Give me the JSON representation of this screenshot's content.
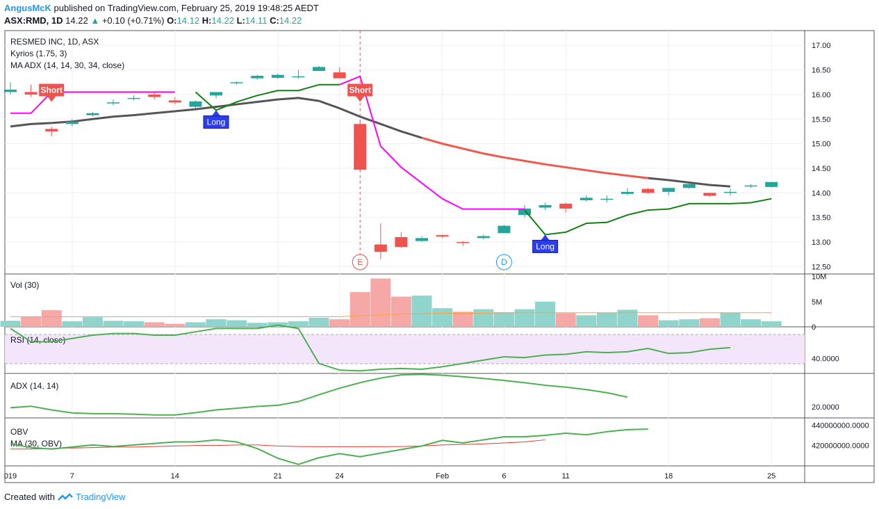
{
  "header": {
    "author": "AngusMcK",
    "published": "published on TradingView.com, February 25, 2019 19:48:25 AEDT",
    "symbol": "ASX:RMD, 1D",
    "last": "14.22",
    "change": "+0.10 (+0.71%)",
    "o_label": "O:",
    "o_value": "14.12",
    "h_label": "H:",
    "h_value": "14.22",
    "l_label": "L:",
    "l_value": "14.11",
    "c_label": "C:",
    "c_value": "14.22"
  },
  "legend": {
    "title": "RESMED INC, 1D, ASX",
    "ind1": "Kyrios (1.75, 3)",
    "ind2": "MA ADX (14, 14, 30, 34, close)"
  },
  "footer": {
    "created": "Created with",
    "brand": "TradingView"
  },
  "colors": {
    "up": "#26a69a",
    "down": "#ef5350",
    "magenta": "#ff00ff",
    "green_line": "#118011",
    "gray_ma": "#555555",
    "red_ma": "#f0584e",
    "rsi": "#4caf50",
    "adx": "#4caf50",
    "obv": "#4caf50",
    "obv_ma": "#e53935",
    "rsi_band": "#f3e6fb",
    "blue": "#2196f3"
  },
  "chart_data": [
    {
      "type": "candlestick",
      "title": "RESMED INC, 1D, ASX",
      "x_ticks": [
        "019",
        "7",
        "14",
        "21",
        "24",
        "Feb",
        "6",
        "11",
        "18",
        "25"
      ],
      "y_ticks": [
        "17.00",
        "16.50",
        "16.00",
        "15.50",
        "15.00",
        "14.50",
        "14.00",
        "13.50",
        "13.00",
        "12.50"
      ],
      "ylim": [
        12.35,
        17.3
      ],
      "candles": [
        {
          "o": 16.05,
          "h": 16.25,
          "l": 16.0,
          "c": 16.1
        },
        {
          "o": 16.05,
          "h": 16.2,
          "l": 15.95,
          "c": 16.0
        },
        {
          "o": 15.3,
          "h": 15.35,
          "l": 15.15,
          "c": 15.25
        },
        {
          "o": 15.4,
          "h": 15.5,
          "l": 15.35,
          "c": 15.45
        },
        {
          "o": 15.58,
          "h": 15.65,
          "l": 15.55,
          "c": 15.62
        },
        {
          "o": 15.82,
          "h": 15.9,
          "l": 15.78,
          "c": 15.84
        },
        {
          "o": 15.93,
          "h": 15.98,
          "l": 15.88,
          "c": 15.93
        },
        {
          "o": 16.0,
          "h": 16.05,
          "l": 15.9,
          "c": 15.95
        },
        {
          "o": 15.88,
          "h": 15.95,
          "l": 15.8,
          "c": 15.84
        },
        {
          "o": 15.75,
          "h": 15.88,
          "l": 15.72,
          "c": 15.86
        },
        {
          "o": 15.98,
          "h": 16.05,
          "l": 15.92,
          "c": 16.05
        },
        {
          "o": 16.25,
          "h": 16.27,
          "l": 16.2,
          "c": 16.25
        },
        {
          "o": 16.33,
          "h": 16.4,
          "l": 16.3,
          "c": 16.38
        },
        {
          "o": 16.34,
          "h": 16.42,
          "l": 16.32,
          "c": 16.4
        },
        {
          "o": 16.35,
          "h": 16.5,
          "l": 16.32,
          "c": 16.37
        },
        {
          "o": 16.48,
          "h": 16.58,
          "l": 16.48,
          "c": 16.56
        },
        {
          "o": 16.45,
          "h": 16.55,
          "l": 16.35,
          "c": 16.33
        },
        {
          "o": 15.4,
          "h": 15.45,
          "l": 14.45,
          "c": 14.47
        },
        {
          "o": 12.95,
          "h": 13.38,
          "l": 12.65,
          "c": 12.8
        },
        {
          "o": 13.1,
          "h": 13.2,
          "l": 12.88,
          "c": 12.9
        },
        {
          "o": 13.02,
          "h": 13.12,
          "l": 13.0,
          "c": 13.08
        },
        {
          "o": 13.14,
          "h": 13.15,
          "l": 13.08,
          "c": 13.11
        },
        {
          "o": 13.0,
          "h": 13.02,
          "l": 12.92,
          "c": 12.98
        },
        {
          "o": 13.08,
          "h": 13.15,
          "l": 13.05,
          "c": 13.12
        },
        {
          "o": 13.18,
          "h": 13.35,
          "l": 13.18,
          "c": 13.33
        },
        {
          "o": 13.55,
          "h": 13.75,
          "l": 13.5,
          "c": 13.68
        },
        {
          "o": 13.7,
          "h": 13.8,
          "l": 13.65,
          "c": 13.75
        },
        {
          "o": 13.78,
          "h": 13.8,
          "l": 13.6,
          "c": 13.68
        },
        {
          "o": 13.85,
          "h": 13.95,
          "l": 13.82,
          "c": 13.9
        },
        {
          "o": 13.88,
          "h": 13.95,
          "l": 13.8,
          "c": 13.88
        },
        {
          "o": 13.98,
          "h": 14.1,
          "l": 13.95,
          "c": 14.02
        },
        {
          "o": 14.08,
          "h": 14.1,
          "l": 13.98,
          "c": 14.0
        },
        {
          "o": 14.02,
          "h": 14.1,
          "l": 13.95,
          "c": 14.1
        },
        {
          "o": 14.1,
          "h": 14.2,
          "l": 14.08,
          "c": 14.18
        },
        {
          "o": 14.0,
          "h": 14.0,
          "l": 13.92,
          "c": 13.94
        },
        {
          "o": 14.02,
          "h": 14.08,
          "l": 13.95,
          "c": 14.02
        },
        {
          "o": 14.13,
          "h": 14.18,
          "l": 14.1,
          "c": 14.15
        },
        {
          "o": 14.12,
          "h": 14.22,
          "l": 14.11,
          "c": 14.22
        }
      ],
      "magenta_line": [
        15.62,
        15.62,
        16.05,
        16.05,
        16.05,
        16.05,
        16.05,
        16.05,
        16.05,
        null,
        null,
        null,
        null,
        null,
        null,
        null,
        16.2,
        16.37,
        14.95,
        14.52,
        14.2,
        13.88,
        13.67,
        13.67,
        13.67,
        13.67
      ],
      "green_line": [
        null,
        null,
        null,
        null,
        null,
        null,
        null,
        null,
        null,
        16.05,
        15.68,
        15.85,
        15.98,
        16.08,
        16.08,
        16.2,
        16.2,
        null,
        null,
        null,
        null,
        null,
        null,
        null,
        null,
        13.65,
        13.15,
        13.2,
        13.38,
        13.4,
        13.55,
        13.65,
        13.67,
        13.78,
        13.78,
        13.78,
        13.8,
        13.88
      ],
      "ma_line": [
        15.35,
        15.4,
        15.42,
        15.45,
        15.5,
        15.55,
        15.58,
        15.62,
        15.66,
        15.7,
        15.75,
        15.8,
        15.85,
        15.9,
        15.93,
        15.87,
        15.72,
        15.55,
        15.4,
        15.25,
        15.12,
        15.0,
        14.9,
        14.8,
        14.72,
        14.65,
        14.58,
        14.52,
        14.46,
        14.4,
        14.35,
        14.3,
        14.26,
        14.21,
        14.16,
        14.13
      ],
      "annotations": [
        {
          "text": "Short"
        },
        {
          "text": "Long"
        },
        {
          "text": "Short"
        },
        {
          "text": "Long"
        },
        {
          "text": "E"
        },
        {
          "text": "D"
        }
      ]
    },
    {
      "type": "bar",
      "title": "Vol (30)",
      "y_ticks": [
        "10M",
        "5M",
        "0"
      ],
      "ylim": [
        0,
        10.5
      ],
      "values": [
        1.2,
        2.0,
        3.3,
        1.1,
        1.9,
        1.2,
        1.1,
        0.9,
        0.6,
        0.9,
        1.5,
        1.3,
        0.8,
        0.9,
        1.1,
        1.8,
        1.5,
        6.9,
        9.6,
        6.0,
        6.2,
        3.7,
        3.0,
        3.5,
        2.9,
        3.5,
        5.0,
        2.7,
        2.3,
        2.8,
        3.4,
        2.3,
        1.3,
        1.5,
        1.7,
        2.8,
        1.5,
        1.1
      ],
      "colors": [
        "u",
        "d",
        "d",
        "u",
        "u",
        "u",
        "u",
        "d",
        "d",
        "u",
        "u",
        "u",
        "u",
        "u",
        "u",
        "u",
        "d",
        "d",
        "d",
        "d",
        "u",
        "u",
        "d",
        "u",
        "u",
        "u",
        "u",
        "d",
        "u",
        "u",
        "u",
        "d",
        "u",
        "u",
        "d",
        "u",
        "u",
        "u"
      ],
      "ma": [
        2.0,
        2.0,
        2.0,
        2.0,
        2.0,
        2.0,
        2.0,
        2.0,
        2.0,
        2.0,
        2.0,
        2.0,
        2.0,
        2.0,
        2.0,
        2.0,
        2.0,
        2.2,
        2.4,
        2.5,
        2.6,
        2.7,
        2.7,
        2.7,
        2.8,
        2.8,
        2.8,
        2.8,
        2.8,
        2.8,
        2.8,
        2.8,
        2.8,
        2.8,
        2.8,
        2.8,
        2.8,
        2.8
      ]
    },
    {
      "type": "line",
      "title": "RSI (14, close)",
      "y_ticks": [
        "40.0000"
      ],
      "ylim": [
        31,
        59
      ],
      "values": [
        58,
        50,
        50,
        52,
        54,
        55,
        55,
        54,
        54,
        56,
        58,
        58,
        58,
        60,
        58,
        37,
        33,
        32.5,
        33.5,
        34,
        33.5,
        35,
        37,
        39,
        41,
        40.5,
        42,
        42.5,
        44,
        43.5,
        44,
        46,
        43,
        43.5,
        45.5,
        46.5
      ]
    },
    {
      "type": "line",
      "title": "ADX (14, 14)",
      "y_ticks": [
        "20.0000"
      ],
      "ylim": [
        14,
        38
      ],
      "values": [
        19.5,
        20.3,
        18.3,
        16.7,
        16.3,
        16.3,
        16.0,
        15.6,
        15.6,
        16.8,
        18.3,
        19.2,
        20.2,
        20.8,
        22.8,
        26.5,
        30.0,
        33.0,
        35.5,
        37.2,
        37.5,
        37.0,
        36.2,
        35.3,
        34.2,
        33.0,
        31.6,
        30.6,
        29.3,
        27.6,
        25.2
      ]
    },
    {
      "type": "line",
      "title": "OBV",
      "y_ticks": [
        "440000000.0000",
        "420000000.0000"
      ],
      "ylim": [
        400,
        447
      ],
      "series": [
        {
          "name": "OBV",
          "values": [
            421.5,
            418,
            416.5,
            418.5,
            420.5,
            419,
            420.5,
            422,
            423.5,
            423.5,
            425.5,
            423.5,
            417,
            407.5,
            401.5,
            408,
            412,
            409,
            412.5,
            416,
            419.5,
            425,
            422.5,
            425.5,
            428.5,
            428.5,
            430,
            432,
            430.5,
            433.5,
            435.5,
            436
          ]
        },
        {
          "name": "MA (30, OBV)",
          "values": [
            416.5,
            416.5,
            417,
            417.5,
            418,
            418.5,
            418.5,
            419,
            419.5,
            420,
            420,
            420.5,
            420.5,
            419.5,
            419,
            418.8,
            418.8,
            418.8,
            418.8,
            419,
            419.5,
            420.5,
            421,
            421.5,
            422.5,
            423.5,
            425.5
          ]
        }
      ]
    }
  ]
}
